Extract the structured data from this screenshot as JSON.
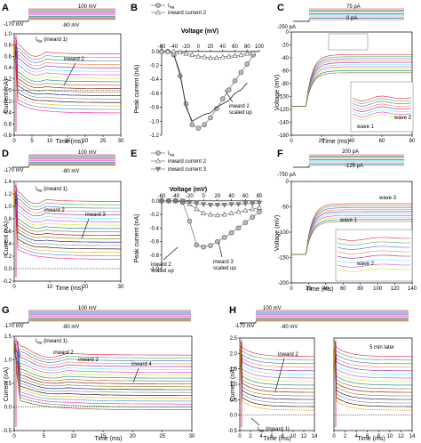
{
  "panels": {
    "A": {
      "letter": "A",
      "protocol": {
        "hold": "-170 mV",
        "step": "-80 mV",
        "top": "100 mV"
      },
      "ylabel": "Current (nA)",
      "xlabel": "Time (ms)",
      "yticks": [
        "1.0",
        "0.8",
        "0.6",
        "0.4",
        "0.2",
        "0.0",
        "-0.2",
        "-0.4",
        "-0.6",
        "-0.8"
      ],
      "xticks": [
        "0",
        "5",
        "10",
        "15",
        "20",
        "25",
        "30"
      ],
      "annot": {
        "ina": "I",
        "ina_sub": "Na",
        "ina_tail": " (inward 1)",
        "inward2": "inward 2"
      }
    },
    "B": {
      "letter": "B",
      "legend": [
        {
          "label": "I",
          "sub": "Na"
        },
        {
          "label": "inward current 2"
        }
      ],
      "ylabel": "Peak current (nA)",
      "xlabel": "Voltage (mV)",
      "xticks": [
        "-60",
        "-40",
        "-20",
        "0",
        "20",
        "40",
        "60",
        "80",
        "100"
      ],
      "yticks": [
        "0.0",
        "-0.2",
        "-0.4",
        "-0.6",
        "-0.8",
        "-1.0",
        "-1.2"
      ],
      "annot": {
        "scaled": "inward 2\nscaled up"
      }
    },
    "C": {
      "letter": "C",
      "protocol": {
        "top": "75 pA",
        "step": "0 pA",
        "hold": "-250 pA"
      },
      "ylabel": "Voltage (mV)",
      "xlabel": "Time (ms)",
      "yticks": [
        "0",
        "-20",
        "-40",
        "-60",
        "-80",
        "-100",
        "-120",
        "-140",
        "-160"
      ],
      "xticks": [
        "0",
        "20",
        "40",
        "60",
        "80"
      ],
      "annot": {
        "wave1": "wave 1",
        "wave2": "wave 2"
      }
    },
    "D": {
      "letter": "D",
      "protocol": {
        "hold": "-170 mV",
        "step": "-80 mV",
        "top": "100 mV"
      },
      "ylabel": "Current (nA)",
      "xlabel": "Time (ms)",
      "yticks": [
        "1.4",
        "1.2",
        "1.0",
        "0.8",
        "0.6",
        "0.4",
        "0.2",
        "0.0",
        "-0.2"
      ],
      "xticks": [
        "0",
        "10",
        "20",
        "30"
      ],
      "annot": {
        "ina": "I",
        "ina_sub": "Na",
        "ina_tail": " (inward 1)",
        "inward2": "inward 2",
        "inward3": "inward 3"
      }
    },
    "E": {
      "letter": "E",
      "legend": [
        {
          "label": "I",
          "sub": "Na"
        },
        {
          "label": "inward current 2"
        },
        {
          "label": "inward current 3"
        }
      ],
      "ylabel": "Peak current (nA)",
      "xlabel": "Voltage (mV)",
      "xticks": [
        "-60",
        "-40",
        "-20",
        "0",
        "20",
        "40",
        "60",
        "80"
      ],
      "yticks": [
        "0.0",
        "-0.2",
        "-0.4",
        "-0.6",
        "-0.8",
        "-1.0"
      ],
      "annot": {
        "scaled2": "inward 2\nscaled up",
        "scaled3": "inward 3\nscaled up"
      }
    },
    "F": {
      "letter": "F",
      "protocol": {
        "top": "200 pA",
        "step": "-125 pA",
        "hold": "-750 pA"
      },
      "ylabel": "Voltage (mV)",
      "xlabel": "Time (ms)",
      "yticks": [
        "0",
        "-50",
        "-100",
        "-150",
        "-200"
      ],
      "xticks": [
        "0",
        "20",
        "40",
        "60",
        "80",
        "100",
        "120",
        "140"
      ],
      "annot": {
        "wave1": "wave 1",
        "wave2": "wave 2",
        "wave3": "wave 3"
      }
    },
    "G": {
      "letter": "G",
      "protocol": {
        "hold": "-170 mV",
        "step": "-80 mV",
        "top": "100 mV"
      },
      "ylabel": "Current (nA)",
      "xlabel": "Time (ms)",
      "yticks": [
        "1.5",
        "1.0",
        "0.5",
        "0.0",
        "-0.5"
      ],
      "xticks": [
        "0",
        "5",
        "10",
        "15",
        "20",
        "25",
        "30"
      ],
      "annot": {
        "ina": "I",
        "ina_sub": "Na",
        "ina_tail": " (inward 1)",
        "inward2": "inward 2",
        "inward3": "inward 3",
        "inward4": "inward 4"
      }
    },
    "H": {
      "letter": "H",
      "protocol": {
        "hold": "-170 mV",
        "step": "-80 mV",
        "top": "100 mV"
      },
      "ylabel": "Current (nA)",
      "xlabel": "Time (ms)",
      "yticks": [
        "2.5",
        "2.0",
        "1.5",
        "1.0",
        "0.5",
        "0.0",
        "-0.5"
      ],
      "xticks": [
        "0",
        "2",
        "4",
        "6",
        "8",
        "10",
        "12",
        "14"
      ],
      "xticks2": [
        "0",
        "2",
        "4",
        "6",
        "8",
        "10",
        "12",
        "14"
      ],
      "annot": {
        "inward2": "inward 2",
        "ina": "I",
        "ina_sub": "Na",
        "ina_tail": " (inward 1)",
        "later": "5 min later"
      }
    }
  },
  "chart_data": [
    {
      "panel": "B",
      "type": "line",
      "xlabel": "Voltage (mV)",
      "ylabel": "Peak current (nA)",
      "xlim": [
        -60,
        100
      ],
      "ylim": [
        -1.2,
        0.1
      ],
      "series": [
        {
          "name": "INa",
          "marker": "circle",
          "x": [
            -60,
            -50,
            -40,
            -30,
            -20,
            -10,
            0,
            10,
            20,
            30,
            40,
            50,
            60,
            70,
            80,
            90
          ],
          "y": [
            0,
            0,
            -0.05,
            -0.35,
            -0.75,
            -1.05,
            -1.1,
            -1.05,
            -0.95,
            -0.82,
            -0.68,
            -0.55,
            -0.42,
            -0.3,
            -0.18,
            -0.05
          ]
        },
        {
          "name": "inward current 2",
          "marker": "triangle",
          "x": [
            -60,
            -50,
            -40,
            -30,
            -20,
            -10,
            0,
            10,
            20,
            30,
            40,
            50,
            60,
            70,
            80,
            90
          ],
          "y": [
            0,
            0,
            0,
            -0.01,
            -0.03,
            -0.05,
            -0.07,
            -0.08,
            -0.09,
            -0.09,
            -0.08,
            -0.07,
            -0.06,
            -0.05,
            -0.03,
            -0.02
          ]
        },
        {
          "name": "inward 2 scaled up",
          "marker": "none",
          "x": [
            -40,
            -30,
            -20,
            -10,
            0,
            10,
            20,
            30,
            40,
            50,
            60,
            70,
            80
          ],
          "y": [
            -0.05,
            -0.3,
            -0.8,
            -1.0,
            -0.95,
            -0.9,
            -0.88,
            -0.8,
            -0.75,
            -0.7,
            -0.6,
            -0.55,
            -0.45
          ]
        }
      ]
    },
    {
      "panel": "E",
      "type": "line",
      "xlabel": "Voltage (mV)",
      "ylabel": "Peak current (nA)",
      "xlim": [
        -60,
        80
      ],
      "ylim": [
        -1.0,
        0.05
      ],
      "series": [
        {
          "name": "INa",
          "marker": "circle",
          "x": [
            -60,
            -50,
            -40,
            -30,
            -20,
            -10,
            0,
            10,
            20,
            30,
            40,
            50,
            60,
            70,
            80
          ],
          "y": [
            0,
            0,
            0,
            -0.02,
            -0.3,
            -0.65,
            -0.68,
            -0.66,
            -0.6,
            -0.54,
            -0.47,
            -0.4,
            -0.32,
            -0.24,
            -0.16
          ]
        },
        {
          "name": "inward current 2",
          "marker": "triangle",
          "x": [
            -60,
            -50,
            -40,
            -30,
            -20,
            -10,
            0,
            10,
            20,
            30,
            40,
            50,
            60,
            70,
            80
          ],
          "y": [
            0,
            0,
            0,
            -0.01,
            -0.05,
            -0.12,
            -0.18,
            -0.2,
            -0.21,
            -0.2,
            -0.18,
            -0.16,
            -0.14,
            -0.12,
            -0.1
          ]
        },
        {
          "name": "inward current 3",
          "marker": "triangle-down",
          "x": [
            -60,
            -50,
            -40,
            -30,
            -20,
            -10,
            0,
            10,
            20,
            30,
            40,
            50,
            60,
            70,
            80
          ],
          "y": [
            0,
            0,
            0,
            0,
            -0.02,
            -0.04,
            -0.05,
            -0.06,
            -0.06,
            -0.06,
            -0.05,
            -0.05,
            -0.04,
            -0.04,
            -0.03
          ]
        }
      ]
    }
  ]
}
